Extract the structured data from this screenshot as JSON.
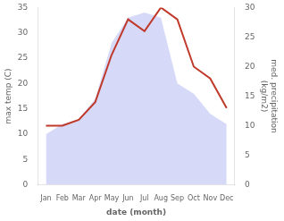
{
  "chart_data": {
    "type": "line",
    "xlabel": "date (month)",
    "ylabel": "max temp (C)",
    "y2label": "med. precipitation\n(kg/m2)",
    "categories": [
      "Jan",
      "Feb",
      "Mar",
      "Apr",
      "May",
      "Jun",
      "Jul",
      "Aug",
      "Sep",
      "Oct",
      "Nov",
      "Dec"
    ],
    "series": [
      {
        "type": "area",
        "color": "#c8cef5",
        "values": [
          10,
          12,
          13,
          17,
          28,
          33,
          34,
          33,
          20,
          18,
          14,
          12
        ]
      },
      {
        "type": "line",
        "color": "#c0392b",
        "axis": "y2",
        "values": [
          10,
          10,
          11,
          14,
          22,
          28,
          26,
          30,
          28,
          20,
          18,
          13
        ]
      }
    ],
    "ylim": [
      0,
      35
    ],
    "yticks": [
      0,
      5,
      10,
      15,
      20,
      25,
      30,
      35
    ],
    "y2lim": [
      0,
      30
    ],
    "y2ticks": [
      0,
      5,
      10,
      15,
      20,
      25,
      30
    ],
    "grid": false
  }
}
